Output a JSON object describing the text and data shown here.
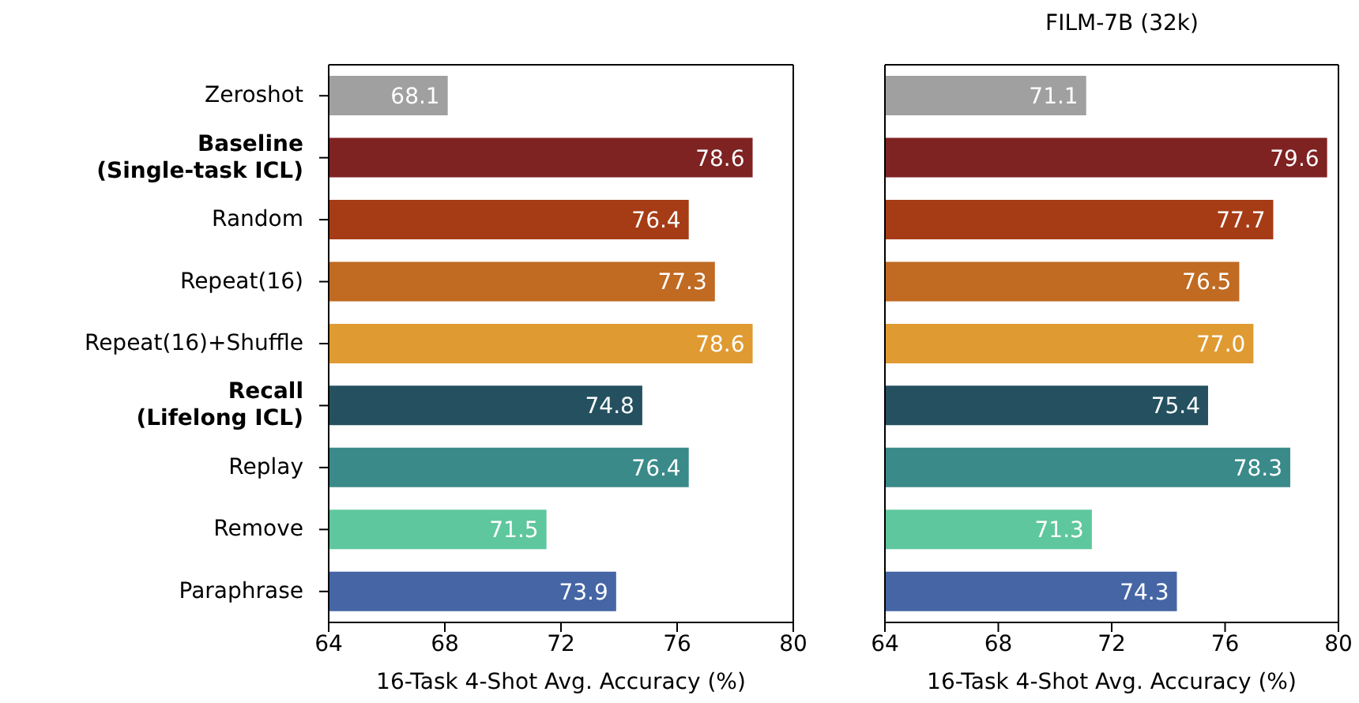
{
  "chart_data": [
    {
      "type": "bar",
      "orientation": "horizontal",
      "xlabel": "16-Task 4-Shot Avg. Accuracy (%)",
      "categories": [
        "Zeroshot",
        "Baseline\n(Single-task ICL)",
        "Random",
        "Repeat(16)",
        "Repeat(16)+Shuffle",
        "Recall\n(Lifelong ICL)",
        "Replay",
        "Remove",
        "Paraphrase"
      ],
      "values": [
        68.1,
        78.6,
        76.4,
        77.3,
        78.6,
        74.8,
        76.4,
        71.5,
        73.9
      ],
      "value_labels": [
        "68.1",
        "78.6",
        "76.4",
        "77.3",
        "78.6",
        "74.8",
        "76.4",
        "71.5",
        "73.9"
      ],
      "colors": [
        "#a0a0a0",
        "#7f2222",
        "#a63c15",
        "#c06a22",
        "#e09a32",
        "#24505f",
        "#3b8a8a",
        "#5fc79d",
        "#4565a5"
      ],
      "xlim": [
        64,
        80
      ],
      "xticks": [
        64,
        68,
        72,
        76,
        80
      ],
      "grid": false
    },
    {
      "type": "bar",
      "orientation": "horizontal",
      "title": "FILM-7B (32k)",
      "xlabel": "16-Task 4-Shot Avg. Accuracy (%)",
      "categories": [
        null,
        null,
        null,
        null,
        null,
        null,
        null,
        null,
        null
      ],
      "values": [
        71.1,
        79.6,
        77.7,
        76.5,
        77.0,
        75.4,
        78.3,
        71.3,
        74.3
      ],
      "value_labels": [
        "71.1",
        "79.6",
        "77.7",
        "76.5",
        "77.0",
        "75.4",
        "78.3",
        "71.3",
        "74.3"
      ],
      "colors": [
        "#a0a0a0",
        "#7f2222",
        "#a63c15",
        "#c06a22",
        "#e09a32",
        "#24505f",
        "#3b8a8a",
        "#5fc79d",
        "#4565a5"
      ],
      "xlim": [
        64,
        80
      ],
      "xticks": [
        64,
        68,
        72,
        76,
        80
      ],
      "grid": false,
      "tick_labels": "x"
    }
  ]
}
